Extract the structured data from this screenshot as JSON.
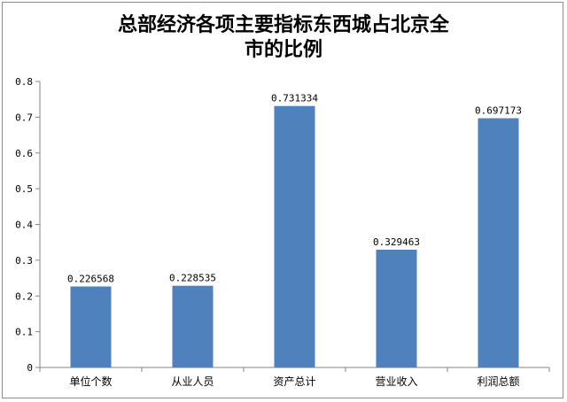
{
  "chart_data": {
    "type": "bar",
    "title_lines": [
      "总部经济各项主要指标东西城占北京全",
      "市的比例"
    ],
    "categories": [
      "单位个数",
      "从业人员",
      "资产总计",
      "营业收入",
      "利润总额"
    ],
    "values": [
      0.226568,
      0.228535,
      0.731334,
      0.329463,
      0.697173
    ],
    "data_labels": [
      "0.226568",
      "0.228535",
      "0.731334",
      "0.329463",
      "0.697173"
    ],
    "yticks": [
      "0",
      "0.1",
      "0.2",
      "0.3",
      "0.4",
      "0.5",
      "0.6",
      "0.7",
      "0.8"
    ],
    "ylim": [
      0,
      0.8
    ],
    "grid": false,
    "legend": "none",
    "bar_color": "#4f81bd"
  }
}
